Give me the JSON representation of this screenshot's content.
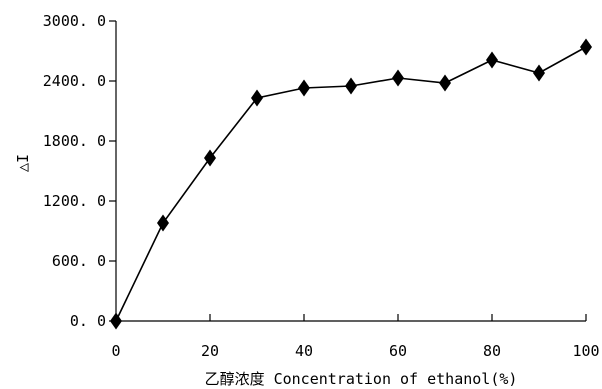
{
  "chart_data": {
    "type": "line",
    "title": "",
    "xlabel": "乙醇浓度 Concentration of ethanol(%)",
    "ylabel": "△I",
    "xlim": [
      0,
      100
    ],
    "ylim": [
      0,
      3000
    ],
    "x_ticks": [
      0,
      20,
      40,
      60,
      80,
      100
    ],
    "x_tick_labels": [
      "0",
      "20",
      "40",
      "60",
      "80",
      "100"
    ],
    "y_ticks": [
      0,
      600,
      1200,
      1800,
      2400,
      3000
    ],
    "y_tick_labels": [
      "0. 0",
      "600. 0",
      "1200. 0",
      "1800. 0",
      "2400. 0",
      "3000. 0"
    ],
    "grid": false,
    "series": [
      {
        "marker": "diamond",
        "color": "#000000",
        "x": [
          0,
          10,
          20,
          30,
          40,
          50,
          60,
          70,
          80,
          90,
          100
        ],
        "y": [
          0,
          980,
          1630,
          2230,
          2330,
          2350,
          2430,
          2380,
          2610,
          2480,
          2740
        ]
      }
    ]
  }
}
